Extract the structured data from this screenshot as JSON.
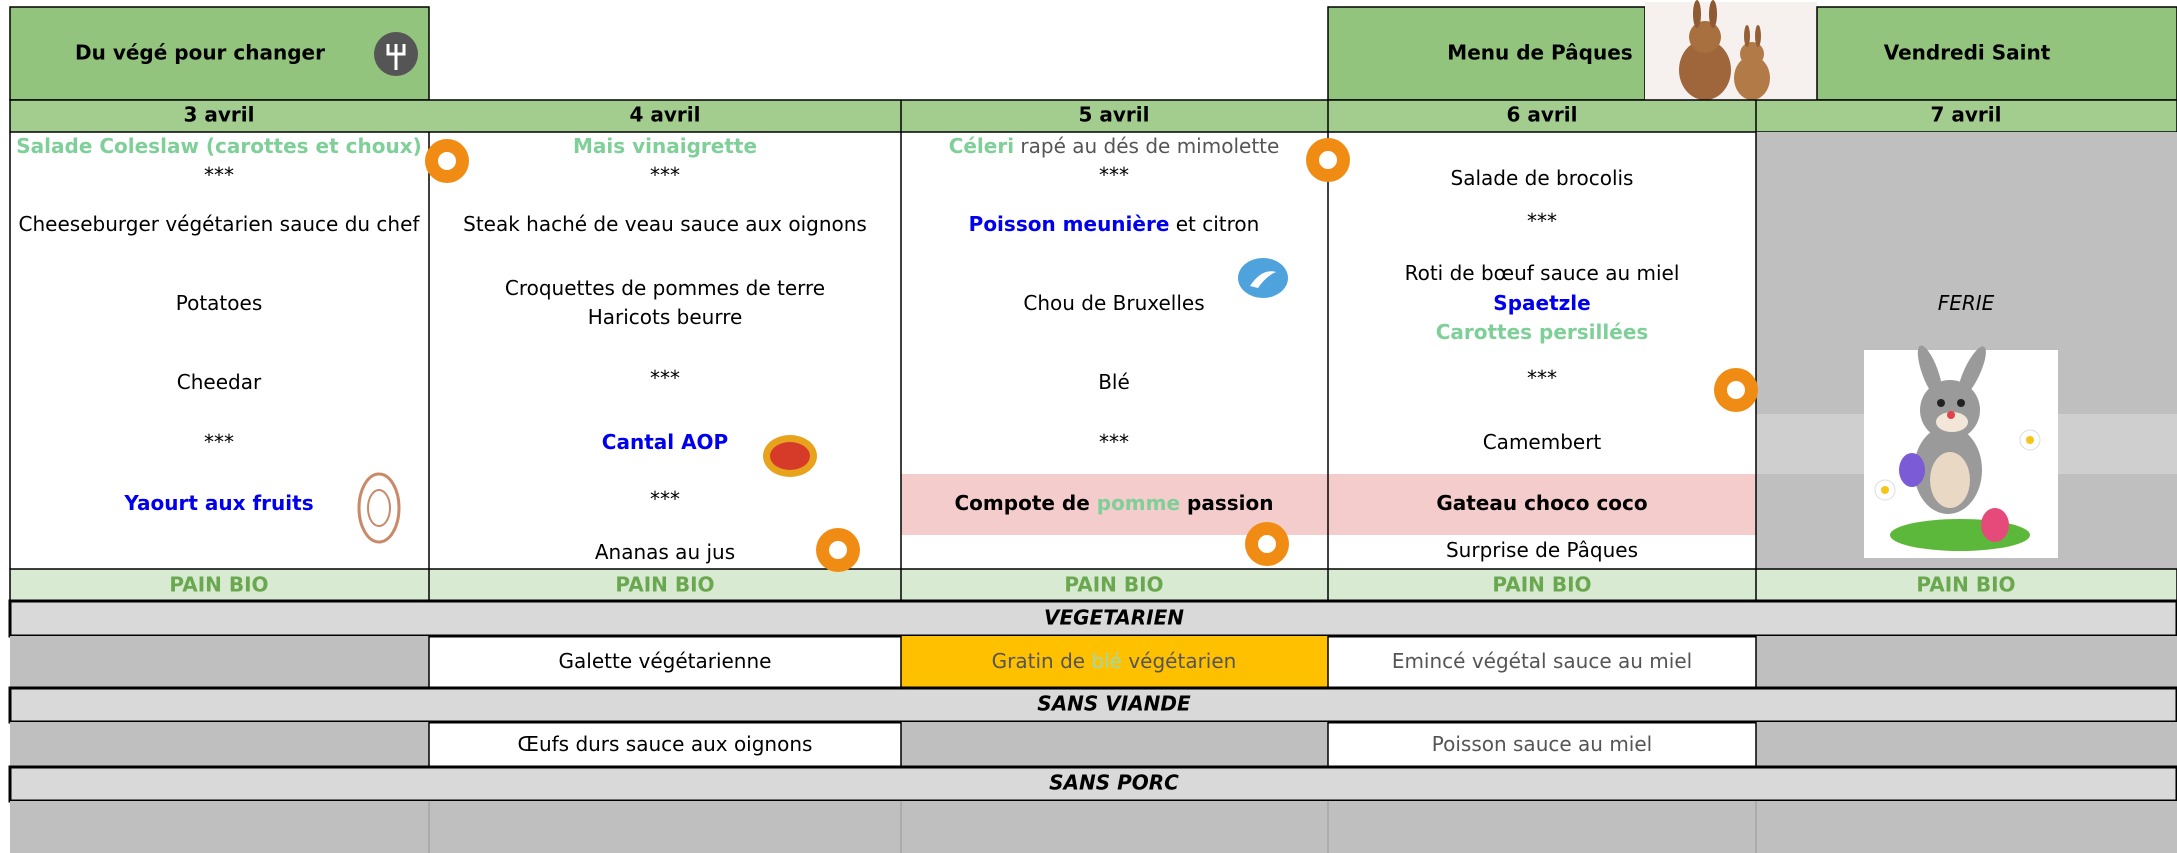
{
  "header": {
    "monday_theme": "Du végé pour changer",
    "thursday_theme": "Menu de Pâques",
    "friday_theme": "Vendredi Saint"
  },
  "days": [
    "3 avril",
    "4 avril",
    "5 avril",
    "6 avril",
    "7 avril"
  ],
  "menu": {
    "monday": [
      [
        "Salade Coleslaw (carottes et choux)"
      ],
      [
        "***"
      ],
      [
        "Cheeseburger végétarien sauce du chef"
      ],
      [
        "Potatoes"
      ],
      [
        "Cheedar"
      ],
      [
        "***"
      ],
      [
        "Yaourt aux fruits"
      ]
    ],
    "tuesday": [
      [
        "Mais vinaigrette"
      ],
      [
        "***"
      ],
      [
        "Steak haché de veau sauce aux oignons"
      ],
      [
        "Croquettes de pommes de terre"
      ],
      [
        "Haricots beurre"
      ],
      [
        "***"
      ],
      [
        "Cantal AOP"
      ],
      [
        "***"
      ],
      [
        "Ananas au jus"
      ]
    ],
    "wednesday": [
      [
        "Céleri",
        " rapé au dés de mimolette"
      ],
      [
        "***"
      ],
      [
        "Poisson meunière",
        " et citron"
      ],
      [
        "Chou de Bruxelles"
      ],
      [
        "Blé"
      ],
      [
        "***"
      ],
      [
        "Compote de ",
        "pomme",
        " passion"
      ]
    ],
    "thursday": [
      [
        "Salade de brocolis"
      ],
      [
        "***"
      ],
      [
        "Roti de bœuf sauce au miel"
      ],
      [
        "Spaetzle"
      ],
      [
        "Carottes persillées"
      ],
      [
        "***"
      ],
      [
        "Camembert"
      ],
      [
        "Gateau choco coco"
      ],
      [
        "Surprise de Pâques"
      ]
    ],
    "friday": [
      [
        "FERIE"
      ]
    ]
  },
  "bread": [
    "PAIN BIO",
    "PAIN BIO",
    "PAIN BIO",
    "PAIN BIO",
    "PAIN BIO"
  ],
  "vegetarian": {
    "title": "VEGETARIEN",
    "tuesday": [
      "Galette végétarienne"
    ],
    "wednesday": [
      "Gratin de ",
      "blé",
      " végétarien"
    ],
    "thursday": [
      "Emincé végétal sauce au miel"
    ]
  },
  "no_meat": {
    "title": "SANS VIANDE",
    "tuesday": [
      "Œufs durs sauce aux oignons"
    ],
    "thursday": [
      "Poisson sauce au miel"
    ]
  },
  "no_pork": {
    "title": "SANS PORC"
  }
}
